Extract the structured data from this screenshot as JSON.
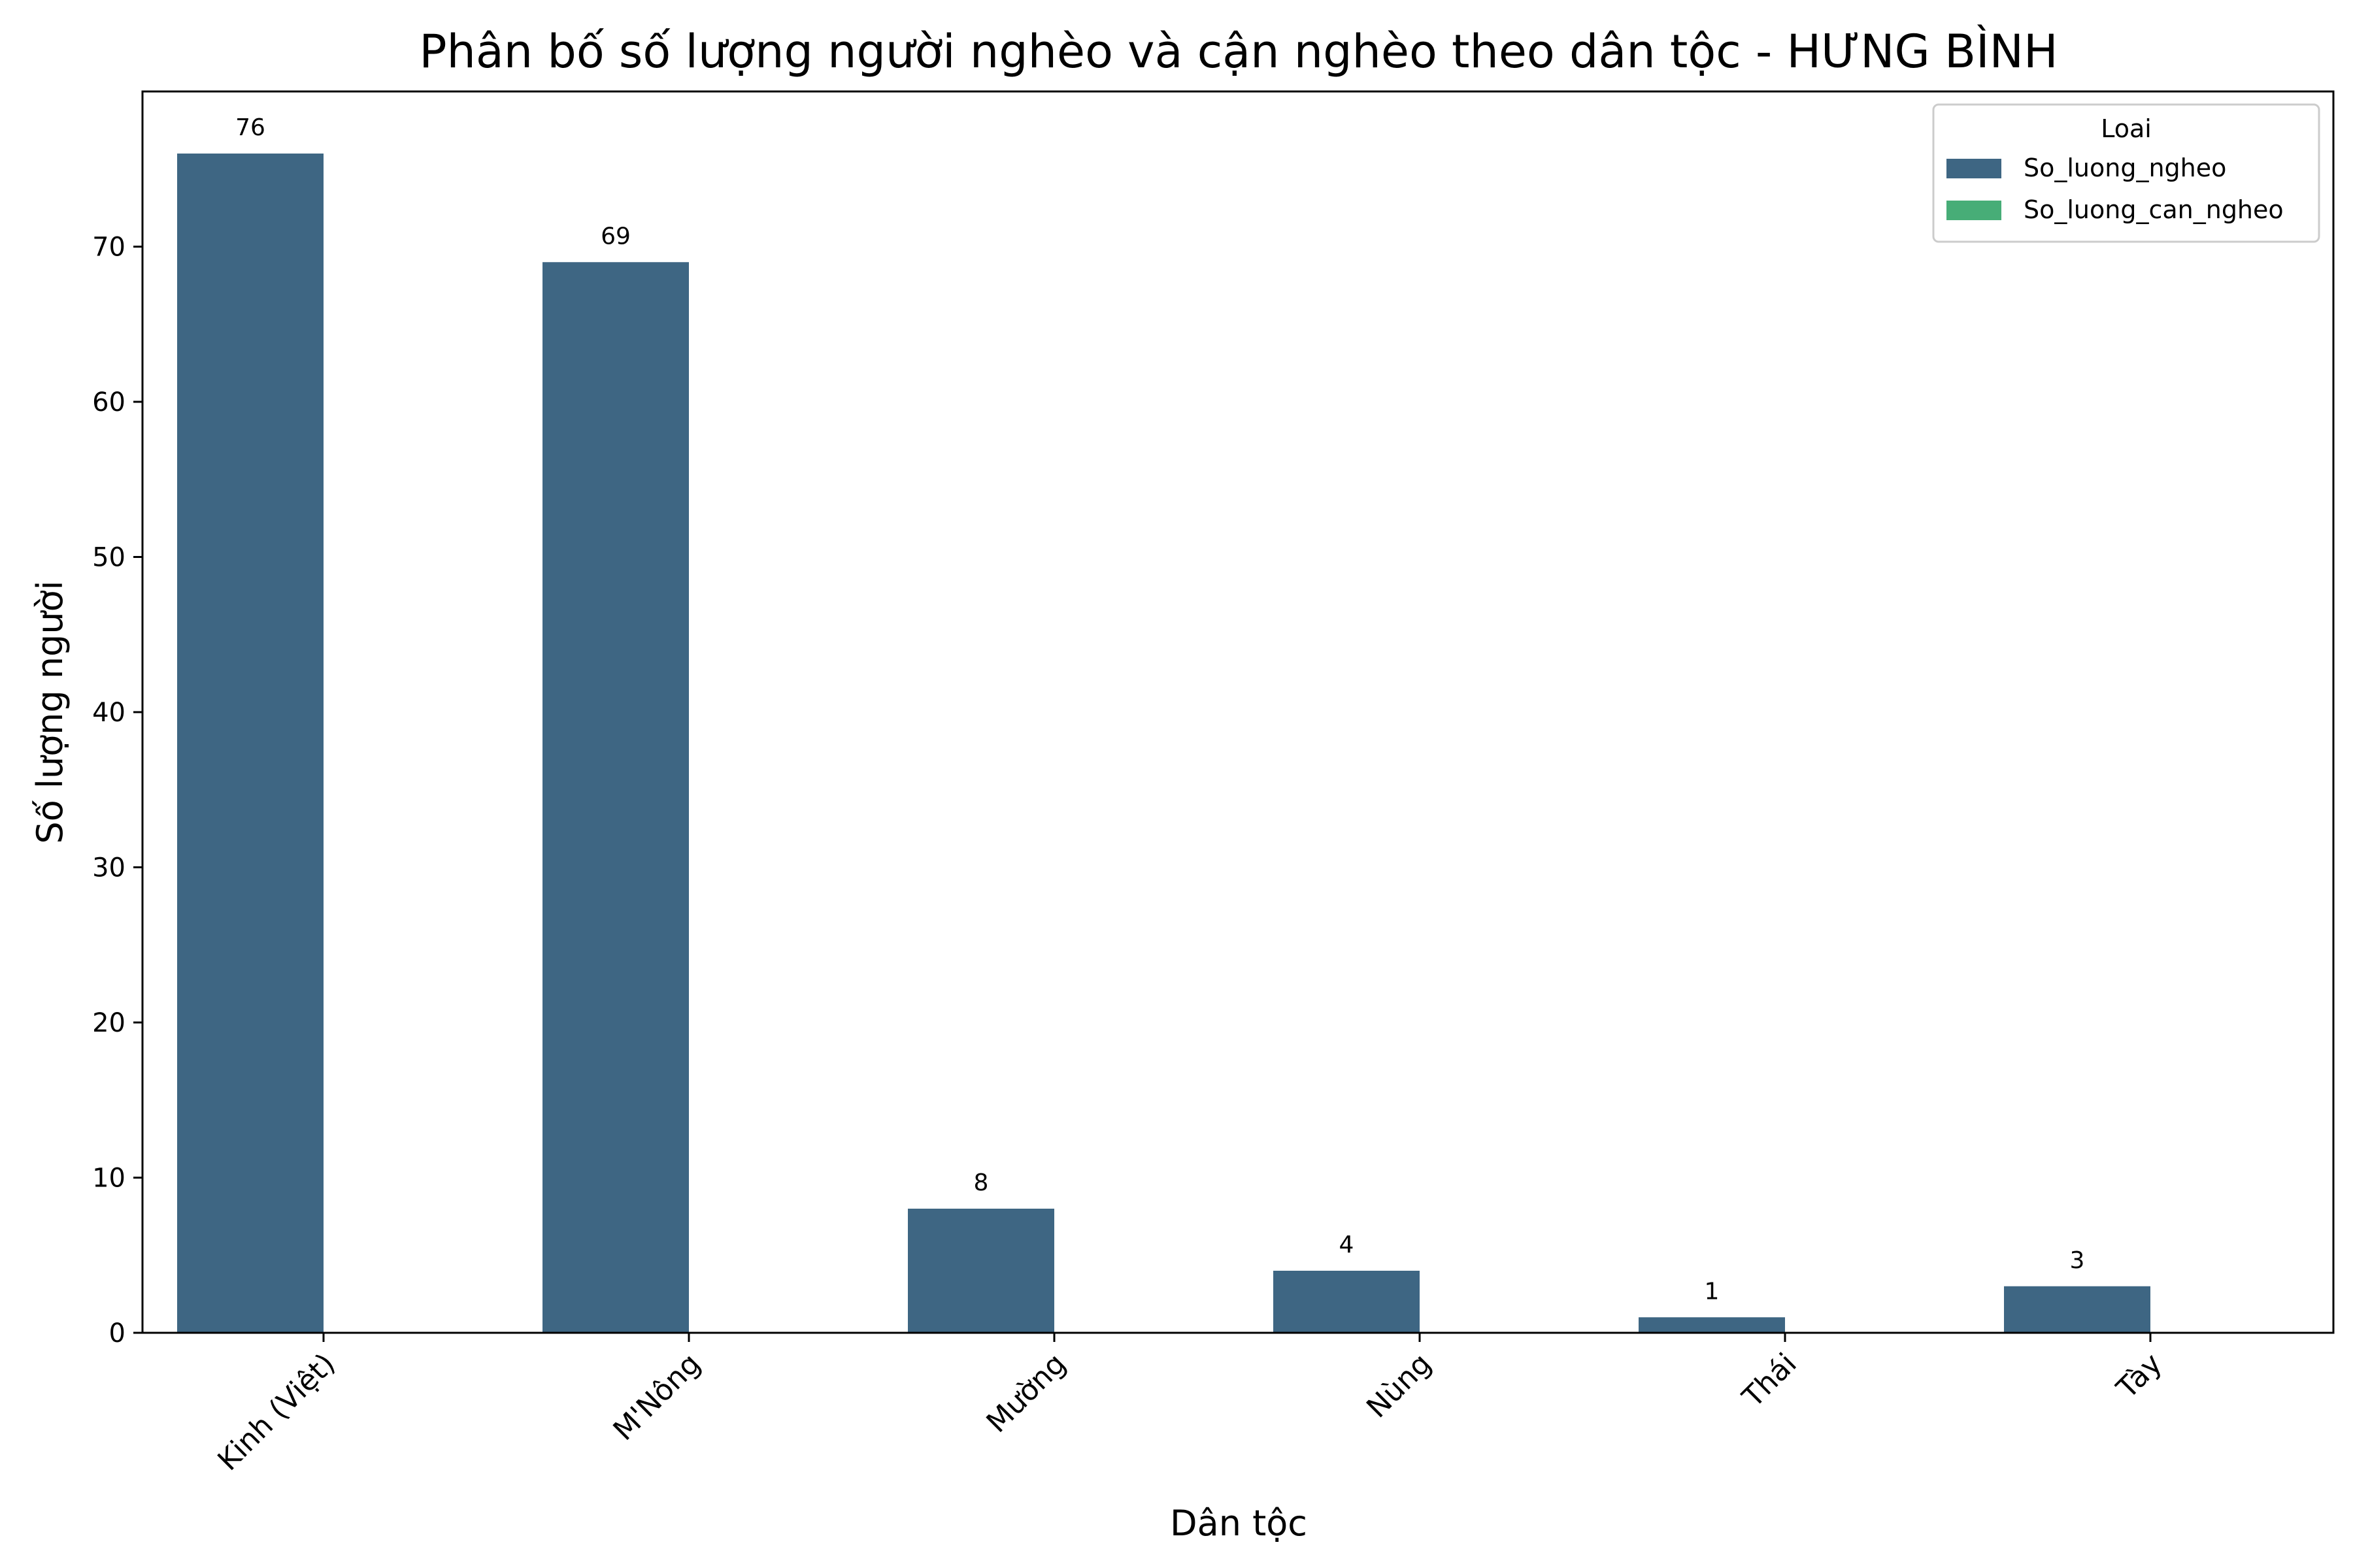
{
  "chart_data": {
    "type": "bar",
    "title": "Phân bố số lượng người nghèo và cận nghèo theo dân tộc - HƯNG BÌNH",
    "xlabel": "Dân tộc",
    "ylabel": "Số lượng người",
    "categories": [
      "Kinh (Việt)",
      "M'Nông",
      "Mường",
      "Nùng",
      "Thái",
      "Tày"
    ],
    "series": [
      {
        "name": "So_luong_ngheo",
        "values": [
          76,
          69,
          8,
          4,
          1,
          3
        ],
        "color": "#3e6683"
      },
      {
        "name": "So_luong_can_ngheo",
        "values": [
          0,
          0,
          0,
          0,
          0,
          0
        ],
        "color": "#47ad77"
      }
    ],
    "data_labels": [
      "76",
      "69",
      "8",
      "4",
      "1",
      "3"
    ],
    "ylim": [
      0,
      80
    ],
    "yticks": [
      0,
      10,
      20,
      30,
      40,
      50,
      60,
      70
    ],
    "legend": {
      "title": "Loai",
      "position": "top-right"
    },
    "grid": false
  }
}
